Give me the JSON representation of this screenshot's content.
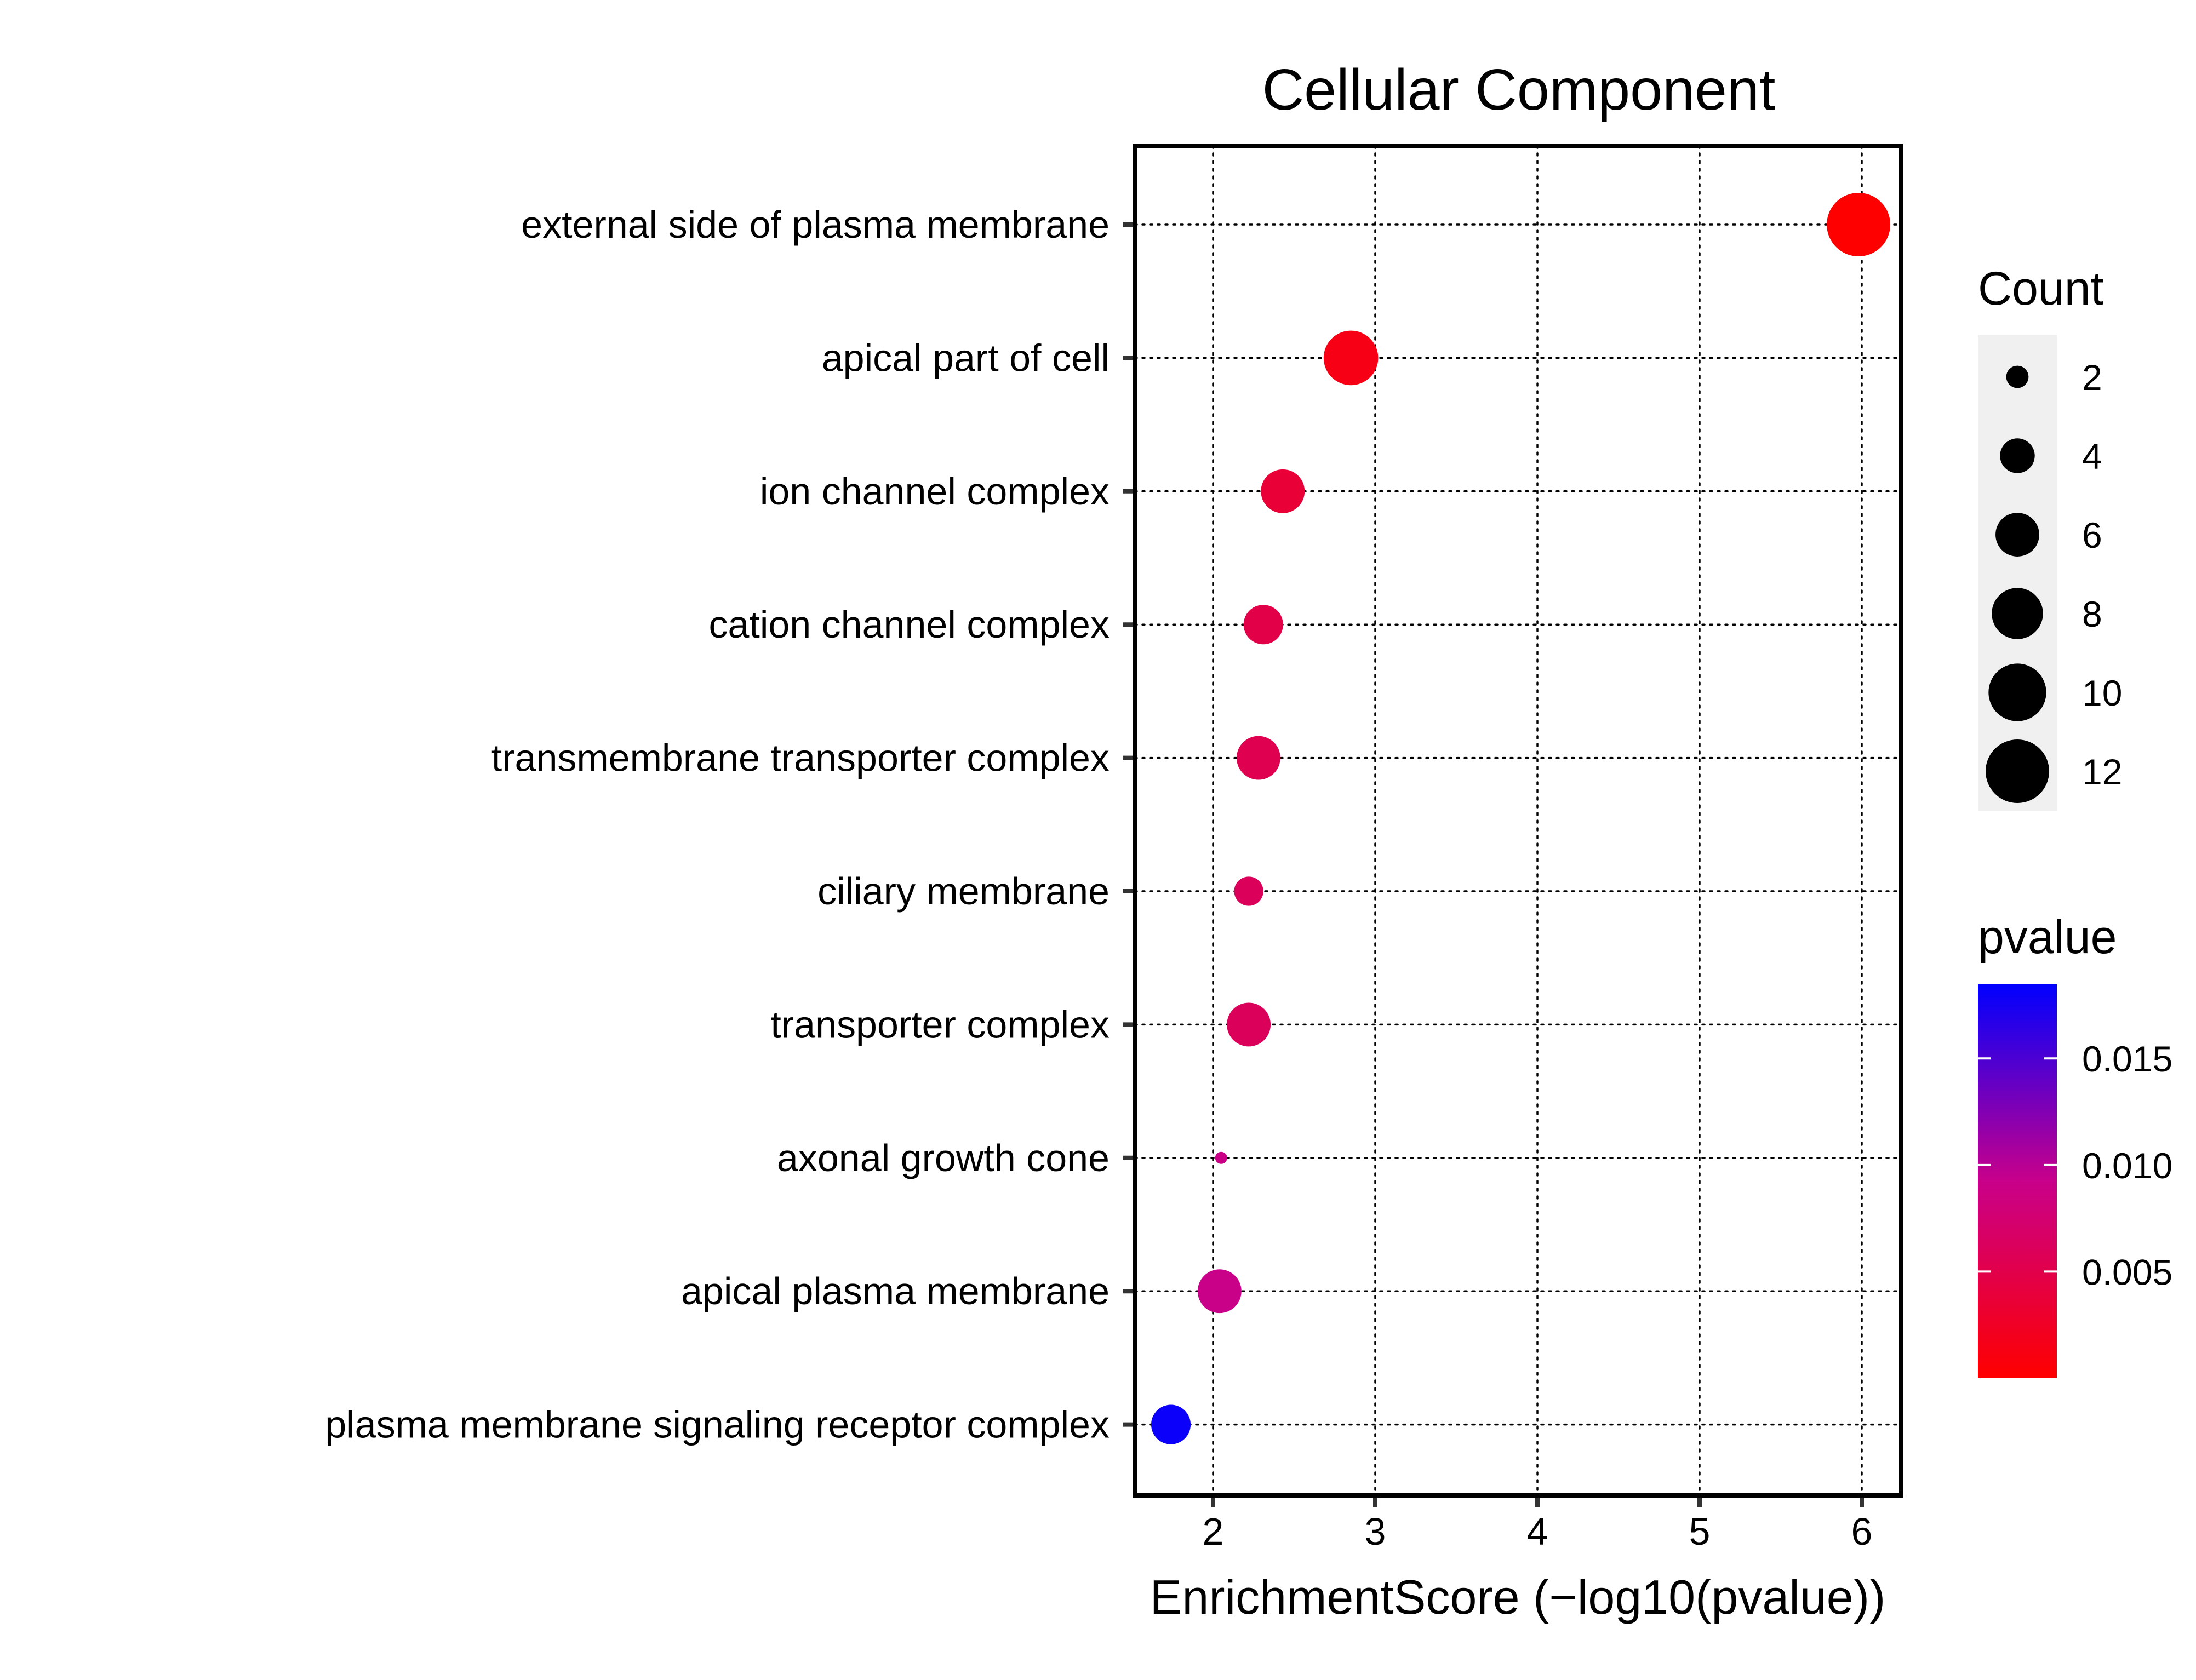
{
  "chart_data": {
    "type": "scatter",
    "title": "Cellular Component",
    "xlabel": "EnrichmentScore (−log10(pvalue))",
    "ylabel": "",
    "xlim": [
      1.5,
      6.25
    ],
    "xticks": [
      2,
      3,
      4,
      5,
      6
    ],
    "grid": true,
    "categories": [
      "external side of plasma membrane",
      "apical part of cell",
      "ion channel complex",
      "cation channel complex",
      "transmembrane transporter complex",
      "ciliary membrane",
      "transporter complex",
      "axonal growth cone",
      "apical plasma membrane",
      "plasma membrane signaling receptor complex"
    ],
    "points": [
      {
        "term": "external side of plasma membrane",
        "x": 5.98,
        "count": 12,
        "pvalue": 1e-06
      },
      {
        "term": "apical part of cell",
        "x": 2.85,
        "count": 9,
        "pvalue": 0.0014
      },
      {
        "term": "ion channel complex",
        "x": 2.43,
        "count": 6,
        "pvalue": 0.0037
      },
      {
        "term": "cation channel complex",
        "x": 2.31,
        "count": 5,
        "pvalue": 0.0049
      },
      {
        "term": "transmembrane transporter complex",
        "x": 2.28,
        "count": 6,
        "pvalue": 0.0053
      },
      {
        "term": "ciliary membrane",
        "x": 2.22,
        "count": 3,
        "pvalue": 0.006
      },
      {
        "term": "transporter complex",
        "x": 2.22,
        "count": 6,
        "pvalue": 0.006
      },
      {
        "term": "axonal growth cone",
        "x": 2.05,
        "count": 1,
        "pvalue": 0.009
      },
      {
        "term": "apical plasma membrane",
        "x": 2.04,
        "count": 6,
        "pvalue": 0.0091
      },
      {
        "term": "plasma membrane signaling receptor complex",
        "x": 1.74,
        "count": 5,
        "pvalue": 0.018
      }
    ],
    "size_legend": {
      "title": "Count",
      "values": [
        2,
        4,
        6,
        8,
        10,
        12
      ],
      "labels": [
        "2",
        "4",
        "6",
        "8",
        "10",
        "12"
      ]
    },
    "color_legend": {
      "title": "pvalue",
      "low": 1e-06,
      "high": 0.0185,
      "low_color": "#FF0000",
      "high_color": "#0000FF",
      "ticks": [
        0.005,
        0.01,
        0.015
      ],
      "labels": [
        "0.005",
        "0.010",
        "0.015"
      ]
    },
    "legend_position": "right"
  }
}
